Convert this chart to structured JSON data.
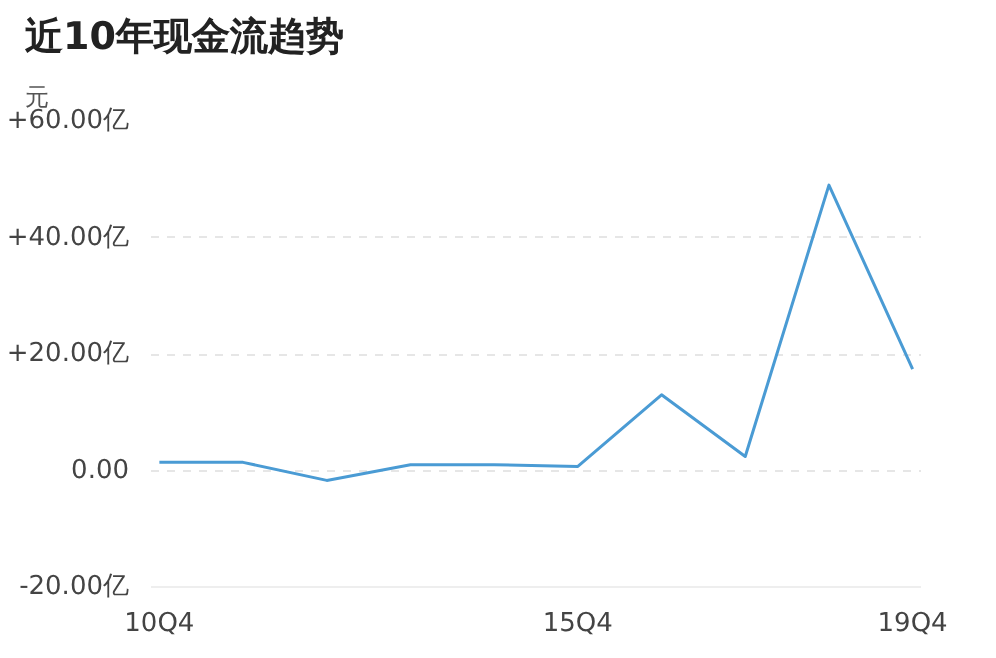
{
  "chart_data": {
    "type": "line",
    "title": "近10年现金流趋势",
    "ylabel": "元",
    "categories": [
      "10Q4",
      null,
      null,
      null,
      null,
      "15Q4",
      null,
      null,
      null,
      "19Q4"
    ],
    "series": [
      {
        "color": "#4a9bd4",
        "values": [
          1.4,
          1.4,
          -1.7,
          1.0,
          1.0,
          0.7,
          13,
          2.4,
          49,
          17.4
        ]
      }
    ],
    "ylim": [
      -20,
      60
    ],
    "yticks": [
      {
        "value": -20,
        "label": "-20.00亿"
      },
      {
        "value": 0,
        "label": "0.00"
      },
      {
        "value": 20,
        "label": "+20.00亿"
      },
      {
        "value": 40,
        "label": "+40.00亿"
      },
      {
        "value": 60,
        "label": "+60.00亿"
      }
    ],
    "grid": "y",
    "marker": "none",
    "line_style": "solid"
  }
}
